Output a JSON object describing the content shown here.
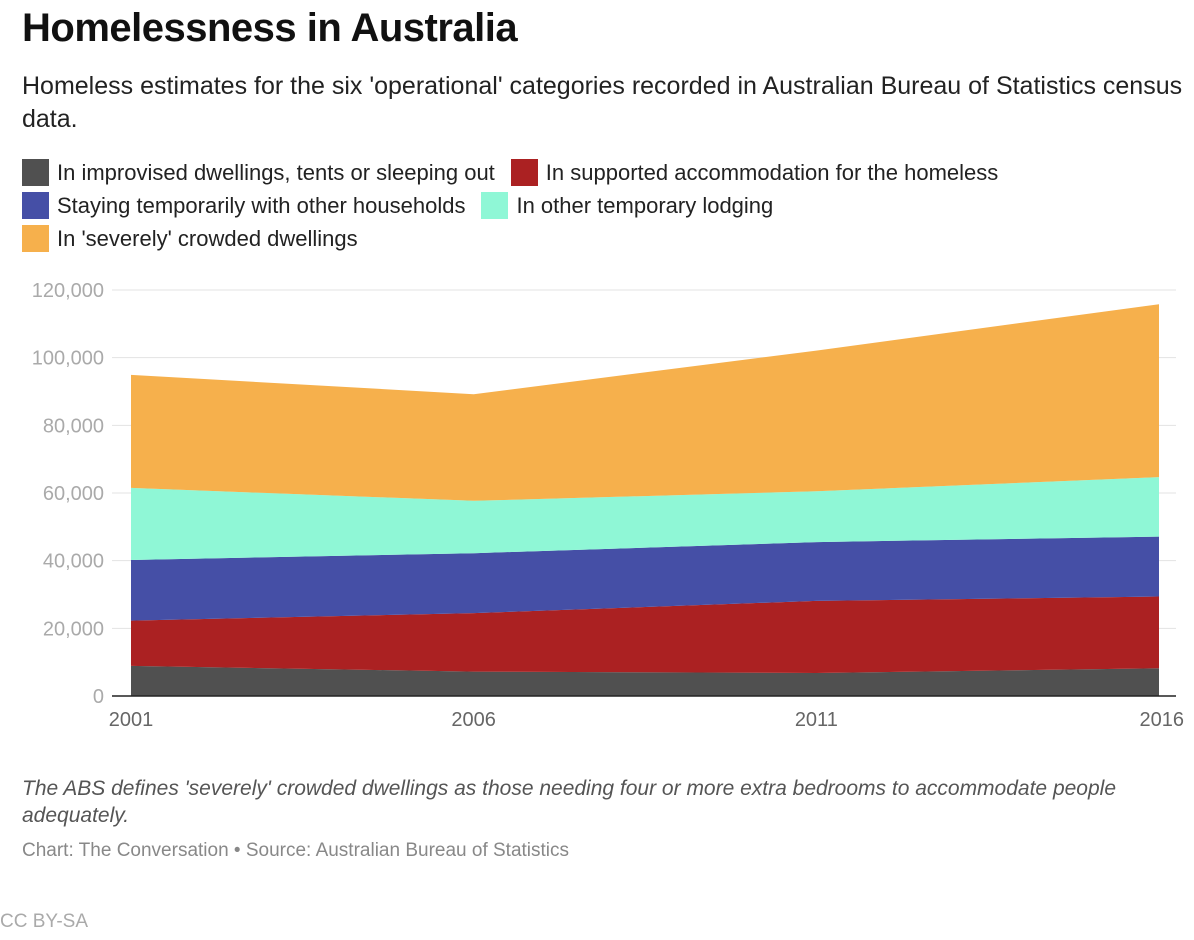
{
  "title": "Homelessness in Australia",
  "subtitle": "Homeless estimates for the six 'operational' categories recorded in Australian Bureau of Statistics census data.",
  "note": "The ABS defines 'severely' crowded dwellings as those needing four or more extra bedrooms to accommodate people adequately.",
  "credit": "Chart: The Conversation • Source: Australian Bureau of Statistics",
  "license": "CC BY-SA",
  "legend": [
    {
      "label": "In improvised dwellings, tents or sleeping out",
      "color": "#505050"
    },
    {
      "label": "In supported accommodation for the homeless",
      "color": "#ab2122"
    },
    {
      "label": "Staying temporarily with other households",
      "color": "#454fa6"
    },
    {
      "label": "In other temporary lodging",
      "color": "#8ff7d6"
    },
    {
      "label": "In 'severely' crowded dwellings",
      "color": "#f6b04c"
    }
  ],
  "chart_data": {
    "type": "area",
    "stacked": true,
    "title": "Homelessness in Australia",
    "xlabel": "",
    "ylabel": "",
    "categories": [
      "2001",
      "2006",
      "2011",
      "2016"
    ],
    "ylim": [
      0,
      120000
    ],
    "yticks": [
      0,
      20000,
      40000,
      60000,
      80000,
      100000,
      120000
    ],
    "ytick_labels": [
      "0",
      "20,000",
      "40,000",
      "60,000",
      "80,000",
      "100,000",
      "120,000"
    ],
    "grid": true,
    "legend_position": "top",
    "series": [
      {
        "name": "In improvised dwellings, tents or sleeping out",
        "color": "#505050",
        "values": [
          8900,
          7200,
          6800,
          8200
        ]
      },
      {
        "name": "In supported accommodation for the homeless",
        "color": "#ab2122",
        "values": [
          13400,
          17300,
          21300,
          21200
        ]
      },
      {
        "name": "Staying temporarily with other households",
        "color": "#454fa6",
        "values": [
          17900,
          17700,
          17400,
          17700
        ]
      },
      {
        "name": "In other temporary lodging",
        "color": "#8ff7d6",
        "values": [
          21300,
          15500,
          15000,
          17600
        ]
      },
      {
        "name": "In 'severely' crowded dwellings",
        "color": "#f6b04c",
        "values": [
          33400,
          31500,
          41600,
          51100
        ]
      }
    ]
  }
}
